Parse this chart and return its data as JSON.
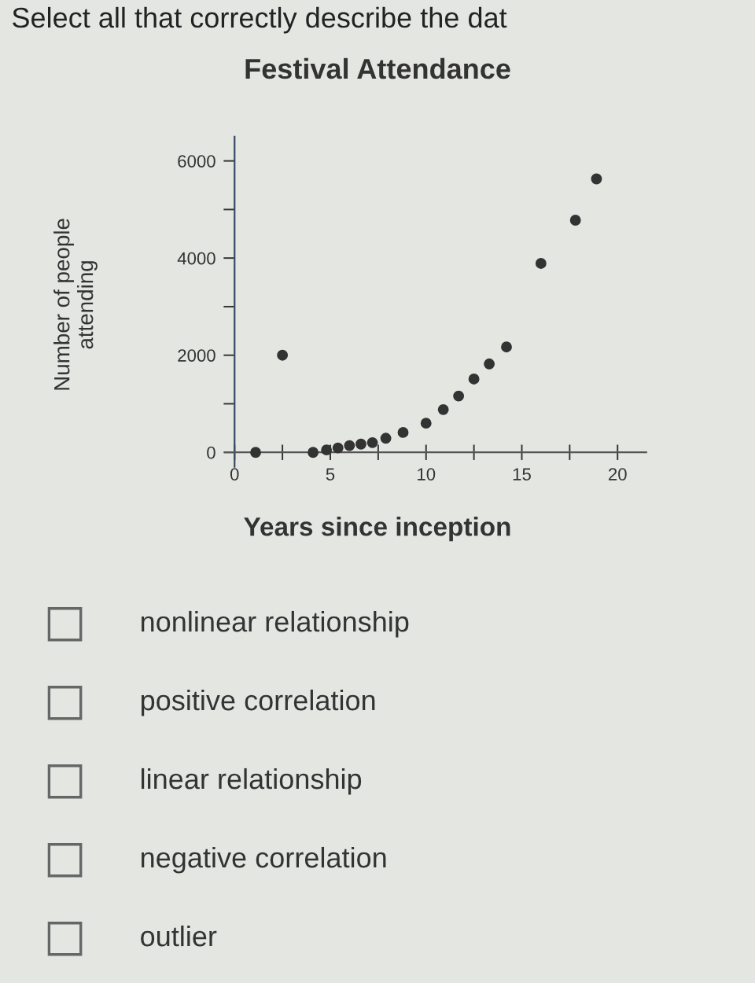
{
  "chart_data": {
    "type": "scatter",
    "title": "Festival Attendance",
    "xlabel": "Years since inception",
    "ylabel": "Number of people\nattending",
    "annotations": [
      "Select all that correctly describe the dat",
      "nonlinear relationship",
      "positive correlation",
      "linear relationship",
      "negative correlation",
      "outlier"
    ],
    "x": [
      1.1,
      2.5,
      4.1,
      4.8,
      5.4,
      6.0,
      6.6,
      7.2,
      7.9,
      8.8,
      10.0,
      10.9,
      11.7,
      12.5,
      13.3,
      14.2,
      16.0,
      17.8,
      18.9
    ],
    "series": [
      {
        "color": "#333333",
        "values": [
          0,
          2000,
          0,
          50,
          90,
          140,
          170,
          200,
          290,
          410,
          600,
          880,
          1160,
          1510,
          1820,
          2170,
          3890,
          4780,
          5630
        ]
      }
    ],
    "marker": "circle",
    "grid": false,
    "xlim": [
      -0.5,
      21.5
    ],
    "ylim": [
      -300,
      6500
    ],
    "xticks": [
      0,
      {
        "value": 2.5,
        "label": null
      },
      5,
      {
        "value": 7.5,
        "label": null
      },
      10,
      {
        "value": 12.5,
        "label": null
      },
      15,
      {
        "value": 17.5,
        "label": null
      },
      20
    ],
    "yticks": [
      0,
      {
        "value": 1000,
        "label": null
      },
      2000,
      {
        "value": 3000,
        "label": null
      },
      4000,
      {
        "value": 5000,
        "label": null
      },
      6000
    ]
  }
}
